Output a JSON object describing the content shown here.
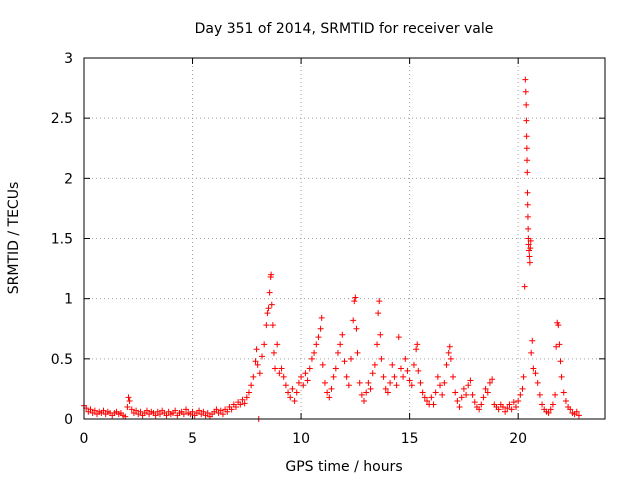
{
  "chart_data": {
    "type": "scatter",
    "title": "Day 351 of 2014, SRMTID for receiver vale",
    "xlabel": "GPS time / hours",
    "ylabel": "SRMTID / TECUs",
    "xlim": [
      0,
      24
    ],
    "ylim": [
      0,
      3
    ],
    "xticks": [
      0,
      5,
      10,
      15,
      20
    ],
    "xtick_labels": [
      "0",
      "5",
      "10",
      "15",
      "20"
    ],
    "yticks": [
      0,
      0.5,
      1,
      1.5,
      2,
      2.5,
      3
    ],
    "ytick_labels": [
      "0",
      "0.5",
      "1",
      "1.5",
      "2",
      "2.5",
      "3"
    ],
    "grid": true,
    "marker": "+",
    "color": "#ff0000",
    "series": [
      {
        "name": "SRMTID",
        "points": [
          [
            0.0,
            0.11
          ],
          [
            0.1,
            0.09
          ],
          [
            0.2,
            0.06
          ],
          [
            0.3,
            0.08
          ],
          [
            0.4,
            0.05
          ],
          [
            0.5,
            0.07
          ],
          [
            0.6,
            0.04
          ],
          [
            0.7,
            0.06
          ],
          [
            0.8,
            0.05
          ],
          [
            0.9,
            0.07
          ],
          [
            1.0,
            0.04
          ],
          [
            1.1,
            0.06
          ],
          [
            1.2,
            0.05
          ],
          [
            1.3,
            0.03
          ],
          [
            1.4,
            0.05
          ],
          [
            1.5,
            0.06
          ],
          [
            1.6,
            0.04
          ],
          [
            1.7,
            0.05
          ],
          [
            1.8,
            0.03
          ],
          [
            1.9,
            0.02
          ],
          [
            2.0,
            0.1
          ],
          [
            2.05,
            0.18
          ],
          [
            2.1,
            0.15
          ],
          [
            2.2,
            0.08
          ],
          [
            2.3,
            0.05
          ],
          [
            2.4,
            0.07
          ],
          [
            2.5,
            0.04
          ],
          [
            2.6,
            0.06
          ],
          [
            2.7,
            0.03
          ],
          [
            2.8,
            0.05
          ],
          [
            2.9,
            0.07
          ],
          [
            3.0,
            0.04
          ],
          [
            3.1,
            0.06
          ],
          [
            3.2,
            0.05
          ],
          [
            3.3,
            0.03
          ],
          [
            3.4,
            0.06
          ],
          [
            3.5,
            0.04
          ],
          [
            3.6,
            0.07
          ],
          [
            3.7,
            0.05
          ],
          [
            3.8,
            0.03
          ],
          [
            3.9,
            0.06
          ],
          [
            4.0,
            0.04
          ],
          [
            4.1,
            0.05
          ],
          [
            4.2,
            0.07
          ],
          [
            4.3,
            0.03
          ],
          [
            4.4,
            0.05
          ],
          [
            4.5,
            0.06
          ],
          [
            4.6,
            0.04
          ],
          [
            4.7,
            0.08
          ],
          [
            4.8,
            0.05
          ],
          [
            4.9,
            0.04
          ],
          [
            5.0,
            0.06
          ],
          [
            5.1,
            0.03
          ],
          [
            5.2,
            0.05
          ],
          [
            5.3,
            0.07
          ],
          [
            5.4,
            0.04
          ],
          [
            5.5,
            0.06
          ],
          [
            5.6,
            0.03
          ],
          [
            5.7,
            0.05
          ],
          [
            5.8,
            0.02
          ],
          [
            5.9,
            0.04
          ],
          [
            6.0,
            0.06
          ],
          [
            6.1,
            0.08
          ],
          [
            6.2,
            0.05
          ],
          [
            6.3,
            0.07
          ],
          [
            6.4,
            0.04
          ],
          [
            6.5,
            0.08
          ],
          [
            6.6,
            0.06
          ],
          [
            6.7,
            0.1
          ],
          [
            6.8,
            0.08
          ],
          [
            6.9,
            0.12
          ],
          [
            7.0,
            0.1
          ],
          [
            7.1,
            0.14
          ],
          [
            7.2,
            0.12
          ],
          [
            7.3,
            0.16
          ],
          [
            7.4,
            0.13
          ],
          [
            7.5,
            0.18
          ],
          [
            7.6,
            0.22
          ],
          [
            7.7,
            0.28
          ],
          [
            7.8,
            0.35
          ],
          [
            7.9,
            0.48
          ],
          [
            7.95,
            0.58
          ],
          [
            8.0,
            0.45
          ],
          [
            8.05,
            0.0
          ],
          [
            8.1,
            0.38
          ],
          [
            8.2,
            0.52
          ],
          [
            8.3,
            0.62
          ],
          [
            8.4,
            0.78
          ],
          [
            8.45,
            0.88
          ],
          [
            8.5,
            0.92
          ],
          [
            8.55,
            1.05
          ],
          [
            8.6,
            1.18
          ],
          [
            8.62,
            1.2
          ],
          [
            8.65,
            0.95
          ],
          [
            8.7,
            0.78
          ],
          [
            8.75,
            0.55
          ],
          [
            8.8,
            0.42
          ],
          [
            8.9,
            0.62
          ],
          [
            9.0,
            0.38
          ],
          [
            9.1,
            0.42
          ],
          [
            9.2,
            0.35
          ],
          [
            9.3,
            0.28
          ],
          [
            9.4,
            0.22
          ],
          [
            9.5,
            0.18
          ],
          [
            9.6,
            0.25
          ],
          [
            9.7,
            0.15
          ],
          [
            9.8,
            0.22
          ],
          [
            9.9,
            0.3
          ],
          [
            10.0,
            0.35
          ],
          [
            10.1,
            0.28
          ],
          [
            10.2,
            0.38
          ],
          [
            10.3,
            0.32
          ],
          [
            10.4,
            0.42
          ],
          [
            10.5,
            0.5
          ],
          [
            10.6,
            0.55
          ],
          [
            10.7,
            0.62
          ],
          [
            10.8,
            0.68
          ],
          [
            10.9,
            0.75
          ],
          [
            10.95,
            0.84
          ],
          [
            11.0,
            0.45
          ],
          [
            11.1,
            0.3
          ],
          [
            11.2,
            0.22
          ],
          [
            11.3,
            0.18
          ],
          [
            11.4,
            0.25
          ],
          [
            11.5,
            0.35
          ],
          [
            11.6,
            0.42
          ],
          [
            11.7,
            0.55
          ],
          [
            11.8,
            0.62
          ],
          [
            11.9,
            0.7
          ],
          [
            12.0,
            0.48
          ],
          [
            12.1,
            0.35
          ],
          [
            12.2,
            0.28
          ],
          [
            12.3,
            0.5
          ],
          [
            12.4,
            0.82
          ],
          [
            12.45,
            0.98
          ],
          [
            12.5,
            1.01
          ],
          [
            12.55,
            0.75
          ],
          [
            12.6,
            0.55
          ],
          [
            12.7,
            0.3
          ],
          [
            12.8,
            0.2
          ],
          [
            12.9,
            0.15
          ],
          [
            13.0,
            0.22
          ],
          [
            13.1,
            0.3
          ],
          [
            13.2,
            0.25
          ],
          [
            13.3,
            0.38
          ],
          [
            13.4,
            0.45
          ],
          [
            13.5,
            0.62
          ],
          [
            13.55,
            0.88
          ],
          [
            13.6,
            0.98
          ],
          [
            13.65,
            0.7
          ],
          [
            13.7,
            0.5
          ],
          [
            13.8,
            0.35
          ],
          [
            13.9,
            0.25
          ],
          [
            14.0,
            0.22
          ],
          [
            14.1,
            0.3
          ],
          [
            14.2,
            0.45
          ],
          [
            14.3,
            0.35
          ],
          [
            14.4,
            0.28
          ],
          [
            14.5,
            0.68
          ],
          [
            14.6,
            0.42
          ],
          [
            14.7,
            0.35
          ],
          [
            14.8,
            0.5
          ],
          [
            14.9,
            0.4
          ],
          [
            15.0,
            0.32
          ],
          [
            15.1,
            0.28
          ],
          [
            15.2,
            0.45
          ],
          [
            15.3,
            0.58
          ],
          [
            15.35,
            0.62
          ],
          [
            15.4,
            0.4
          ],
          [
            15.5,
            0.3
          ],
          [
            15.6,
            0.22
          ],
          [
            15.7,
            0.18
          ],
          [
            15.8,
            0.15
          ],
          [
            15.9,
            0.12
          ],
          [
            16.0,
            0.18
          ],
          [
            16.1,
            0.12
          ],
          [
            16.2,
            0.22
          ],
          [
            16.3,
            0.35
          ],
          [
            16.4,
            0.28
          ],
          [
            16.5,
            0.2
          ],
          [
            16.6,
            0.3
          ],
          [
            16.7,
            0.45
          ],
          [
            16.8,
            0.55
          ],
          [
            16.85,
            0.6
          ],
          [
            16.9,
            0.5
          ],
          [
            17.0,
            0.35
          ],
          [
            17.1,
            0.22
          ],
          [
            17.2,
            0.15
          ],
          [
            17.3,
            0.1
          ],
          [
            17.4,
            0.18
          ],
          [
            17.5,
            0.25
          ],
          [
            17.6,
            0.2
          ],
          [
            17.7,
            0.28
          ],
          [
            17.8,
            0.32
          ],
          [
            17.9,
            0.2
          ],
          [
            18.0,
            0.14
          ],
          [
            18.1,
            0.1
          ],
          [
            18.2,
            0.08
          ],
          [
            18.3,
            0.12
          ],
          [
            18.4,
            0.18
          ],
          [
            18.5,
            0.25
          ],
          [
            18.6,
            0.22
          ],
          [
            18.7,
            0.3
          ],
          [
            18.8,
            0.33
          ],
          [
            18.9,
            0.12
          ],
          [
            19.0,
            0.1
          ],
          [
            19.1,
            0.08
          ],
          [
            19.2,
            0.12
          ],
          [
            19.3,
            0.1
          ],
          [
            19.4,
            0.06
          ],
          [
            19.5,
            0.09
          ],
          [
            19.6,
            0.12
          ],
          [
            19.7,
            0.08
          ],
          [
            19.8,
            0.14
          ],
          [
            19.9,
            0.1
          ],
          [
            20.0,
            0.15
          ],
          [
            20.1,
            0.2
          ],
          [
            20.2,
            0.25
          ],
          [
            20.25,
            0.35
          ],
          [
            20.3,
            1.1
          ],
          [
            20.33,
            2.82
          ],
          [
            20.35,
            2.72
          ],
          [
            20.37,
            2.61
          ],
          [
            20.38,
            2.48
          ],
          [
            20.39,
            2.35
          ],
          [
            20.4,
            2.25
          ],
          [
            20.41,
            2.15
          ],
          [
            20.42,
            2.05
          ],
          [
            20.43,
            1.88
          ],
          [
            20.44,
            1.78
          ],
          [
            20.45,
            1.68
          ],
          [
            20.46,
            1.58
          ],
          [
            20.47,
            1.5
          ],
          [
            20.48,
            1.45
          ],
          [
            20.5,
            1.4
          ],
          [
            20.52,
            1.35
          ],
          [
            20.54,
            1.3
          ],
          [
            20.56,
            1.42
          ],
          [
            20.58,
            1.48
          ],
          [
            20.6,
            0.55
          ],
          [
            20.65,
            0.65
          ],
          [
            20.7,
            0.42
          ],
          [
            20.8,
            0.38
          ],
          [
            20.9,
            0.3
          ],
          [
            21.0,
            0.2
          ],
          [
            21.1,
            0.12
          ],
          [
            21.2,
            0.08
          ],
          [
            21.3,
            0.06
          ],
          [
            21.4,
            0.05
          ],
          [
            21.5,
            0.08
          ],
          [
            21.6,
            0.12
          ],
          [
            21.7,
            0.2
          ],
          [
            21.75,
            0.6
          ],
          [
            21.8,
            0.8
          ],
          [
            21.85,
            0.78
          ],
          [
            21.9,
            0.62
          ],
          [
            21.95,
            0.48
          ],
          [
            22.0,
            0.35
          ],
          [
            22.1,
            0.22
          ],
          [
            22.2,
            0.15
          ],
          [
            22.3,
            0.1
          ],
          [
            22.4,
            0.08
          ],
          [
            22.5,
            0.05
          ],
          [
            22.6,
            0.04
          ],
          [
            22.7,
            0.06
          ],
          [
            22.8,
            0.03
          ]
        ]
      }
    ]
  }
}
